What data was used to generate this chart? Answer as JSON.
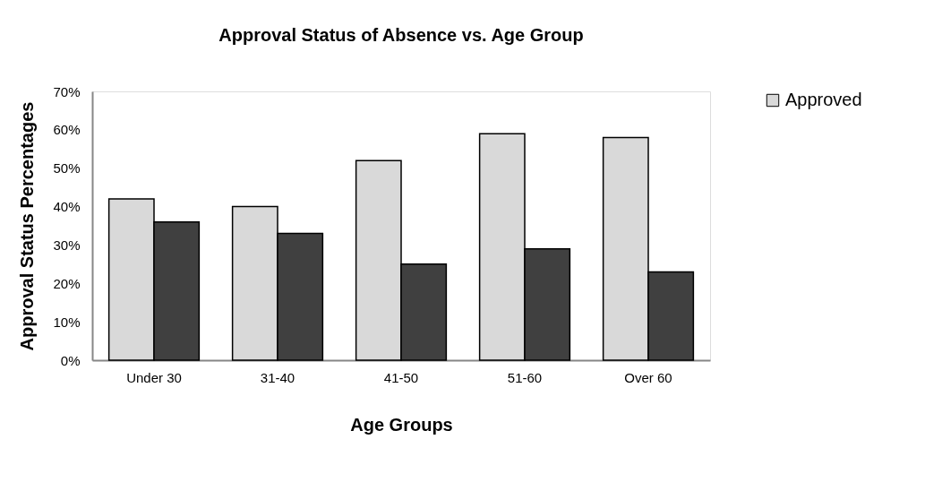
{
  "chart_data": {
    "type": "bar",
    "title": "Approval Status of Absence vs. Age Group",
    "xlabel": "Age Groups",
    "ylabel": "Approval Status Percentages",
    "categories": [
      "Under 30",
      "31-40",
      "41-50",
      "51-60",
      "Over 60"
    ],
    "series": [
      {
        "name": "Approved",
        "color": "#d9d9d9",
        "values": [
          42,
          40,
          52,
          59,
          58
        ]
      },
      {
        "color": "#404040",
        "values": [
          36,
          33,
          25,
          29,
          23
        ]
      }
    ],
    "ylim": [
      0,
      70
    ],
    "yticks": [
      {
        "value": 0,
        "label": "0%"
      },
      {
        "value": 10,
        "label": "10%"
      },
      {
        "value": 20,
        "label": "20%"
      },
      {
        "value": 30,
        "label": "30%"
      },
      {
        "value": 40,
        "label": "40%"
      },
      {
        "value": 50,
        "label": "50%"
      },
      {
        "value": 60,
        "label": "60%"
      },
      {
        "value": 70,
        "label": "70%"
      }
    ],
    "grid": false,
    "legend": "right"
  }
}
